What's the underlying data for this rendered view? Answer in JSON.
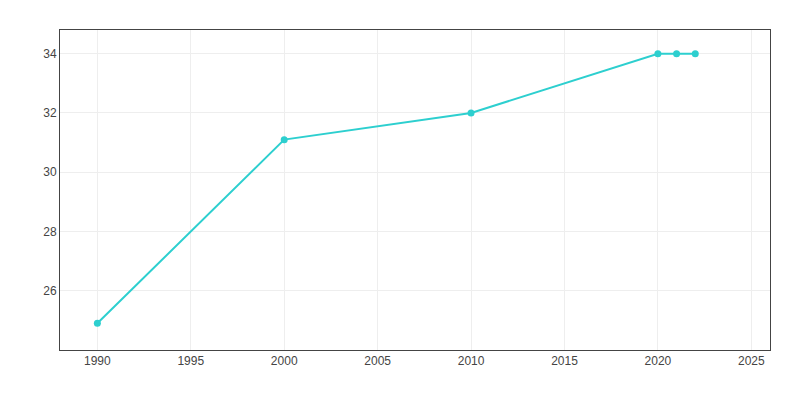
{
  "chart_data": {
    "type": "line",
    "x": [
      1990,
      2000,
      2010,
      2020,
      2021,
      2022
    ],
    "values": [
      24.9,
      31.1,
      32.0,
      34.0,
      34.0,
      34.0
    ],
    "color": "#2dcfcf",
    "marker": "circle",
    "xlim": [
      1988,
      2026
    ],
    "ylim": [
      24.0,
      34.8
    ],
    "xticks": [
      1990,
      1995,
      2000,
      2005,
      2010,
      2015,
      2020,
      2025
    ],
    "yticks": [
      26,
      28,
      30,
      32,
      34
    ],
    "grid": true
  }
}
